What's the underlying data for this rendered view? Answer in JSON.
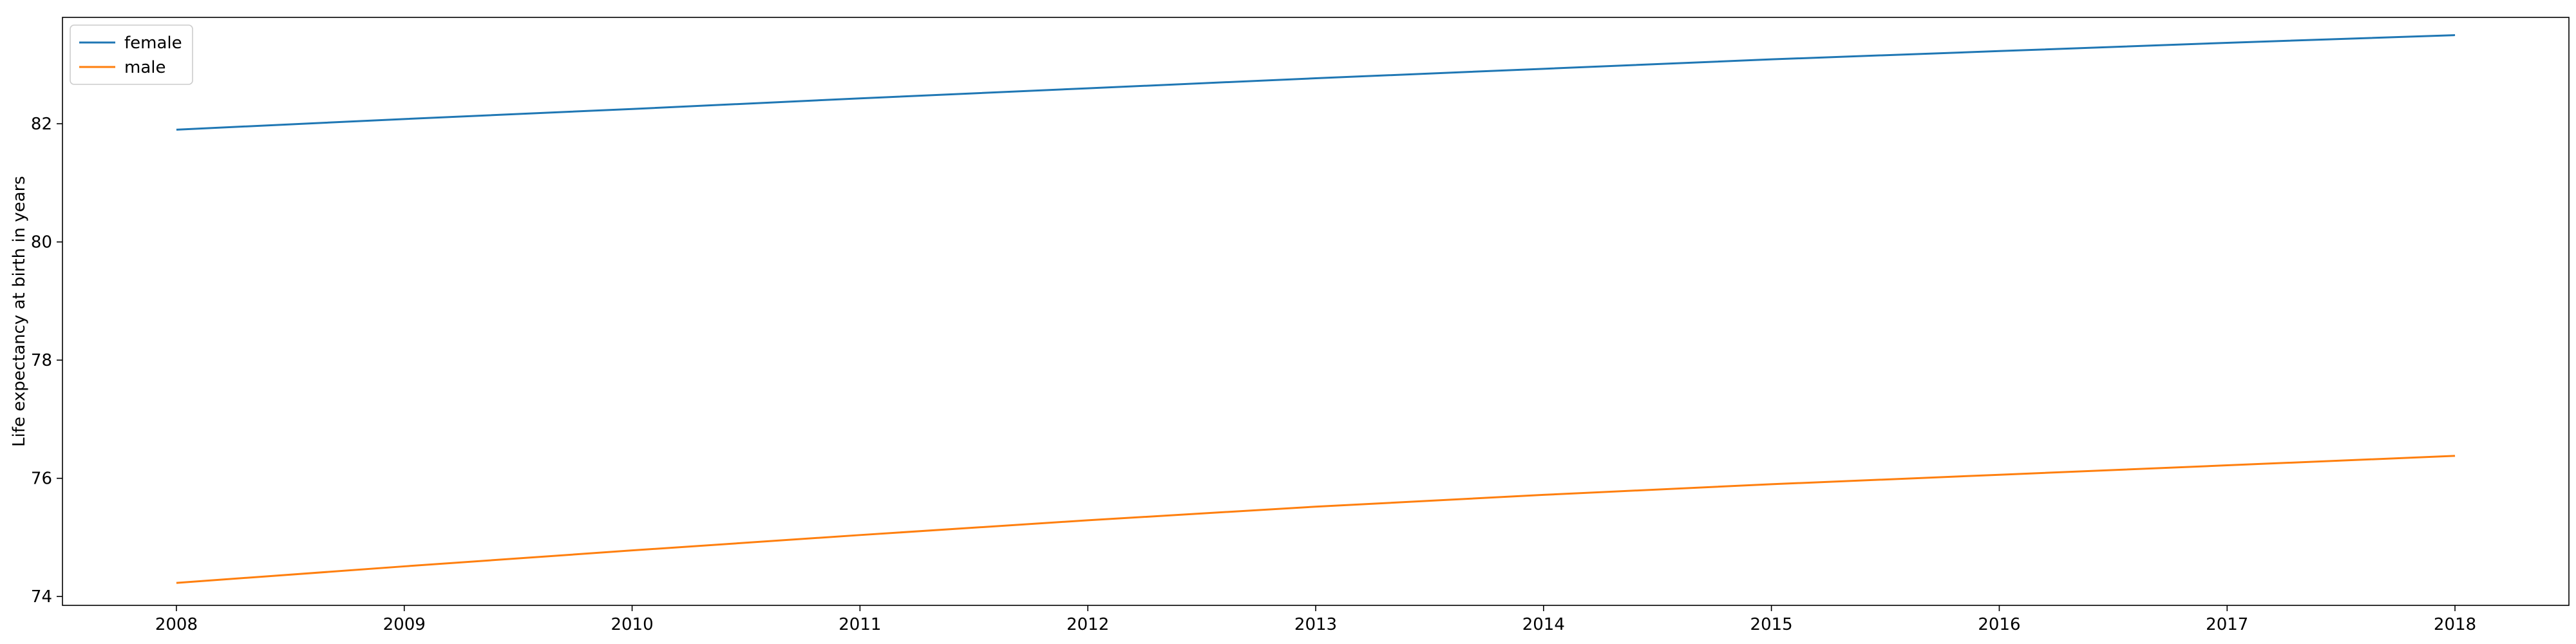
{
  "chart_data": {
    "type": "line",
    "title": "",
    "xlabel": "",
    "ylabel": "Life expectancy at birth in years",
    "x": [
      2008,
      2009,
      2010,
      2011,
      2012,
      2013,
      2014,
      2015,
      2016,
      2017,
      2018
    ],
    "x_ticks": [
      "2008",
      "2009",
      "2010",
      "2011",
      "2012",
      "2013",
      "2014",
      "2015",
      "2016",
      "2017",
      "2018"
    ],
    "y_ticks": [
      "74",
      "76",
      "78",
      "80",
      "82"
    ],
    "xlim": [
      2007.5,
      2018.5
    ],
    "ylim": [
      73.85,
      83.8
    ],
    "grid": false,
    "legend_position": "top-left",
    "series": [
      {
        "name": "female",
        "color": "#1f77b4",
        "values": [
          81.9,
          82.08,
          82.25,
          82.43,
          82.6,
          82.77,
          82.93,
          83.09,
          83.23,
          83.37,
          83.5
        ]
      },
      {
        "name": "male",
        "color": "#ff7f0e",
        "values": [
          74.23,
          74.51,
          74.78,
          75.04,
          75.29,
          75.52,
          75.72,
          75.9,
          76.06,
          76.22,
          76.38
        ]
      }
    ]
  }
}
